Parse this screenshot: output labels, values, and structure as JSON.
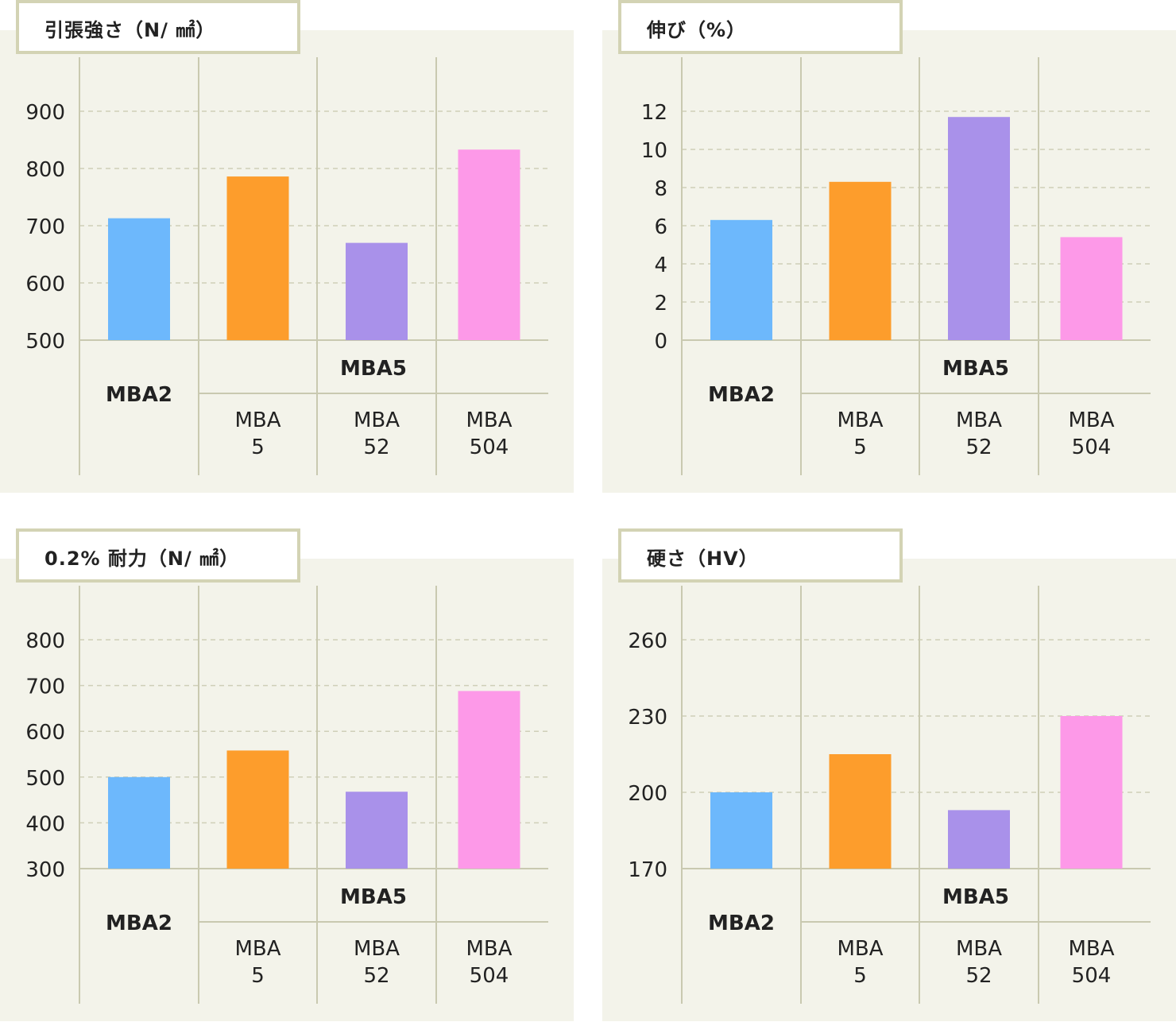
{
  "colors": {
    "background": "#f3f3ea",
    "frame": "#d3d3b4",
    "gridline": "#cfcfb8",
    "axis": "#c9c9b0",
    "text": "#222222",
    "bars": [
      "#6db8fc",
      "#fd9d2c",
      "#a991ea",
      "#fd99e8"
    ]
  },
  "shared_labels": {
    "group1": "MBA2",
    "group2": "MBA5",
    "sub_line1": "MBA",
    "subs": [
      "5",
      "52",
      "504"
    ]
  },
  "chart_data": [
    {
      "type": "bar",
      "title": "引張強さ（N/ ㎟）",
      "categories": [
        "MBA2",
        "MBA 5",
        "MBA 52",
        "MBA 504"
      ],
      "values": [
        713,
        786,
        670,
        833
      ],
      "ylim": [
        500,
        900
      ],
      "yticks": [
        500,
        600,
        700,
        800,
        900
      ],
      "grid": true
    },
    {
      "type": "bar",
      "title": "伸び（%）",
      "categories": [
        "MBA2",
        "MBA 5",
        "MBA 52",
        "MBA 504"
      ],
      "values": [
        6.3,
        8.3,
        11.7,
        5.4
      ],
      "ylim": [
        0,
        12
      ],
      "yticks": [
        0,
        2,
        4,
        6,
        8,
        10,
        12
      ],
      "grid": true
    },
    {
      "type": "bar",
      "title": "0.2% 耐力（N/ ㎟）",
      "categories": [
        "MBA2",
        "MBA 5",
        "MBA 52",
        "MBA 504"
      ],
      "values": [
        500,
        558,
        468,
        688
      ],
      "ylim": [
        300,
        800
      ],
      "yticks": [
        300,
        400,
        500,
        600,
        700,
        800
      ],
      "grid": true
    },
    {
      "type": "bar",
      "title": "硬さ（HV）",
      "categories": [
        "MBA2",
        "MBA 5",
        "MBA 52",
        "MBA 504"
      ],
      "values": [
        200,
        215,
        193,
        230
      ],
      "ylim": [
        170,
        260
      ],
      "yticks": [
        170,
        200,
        230,
        260
      ],
      "grid": true
    }
  ]
}
